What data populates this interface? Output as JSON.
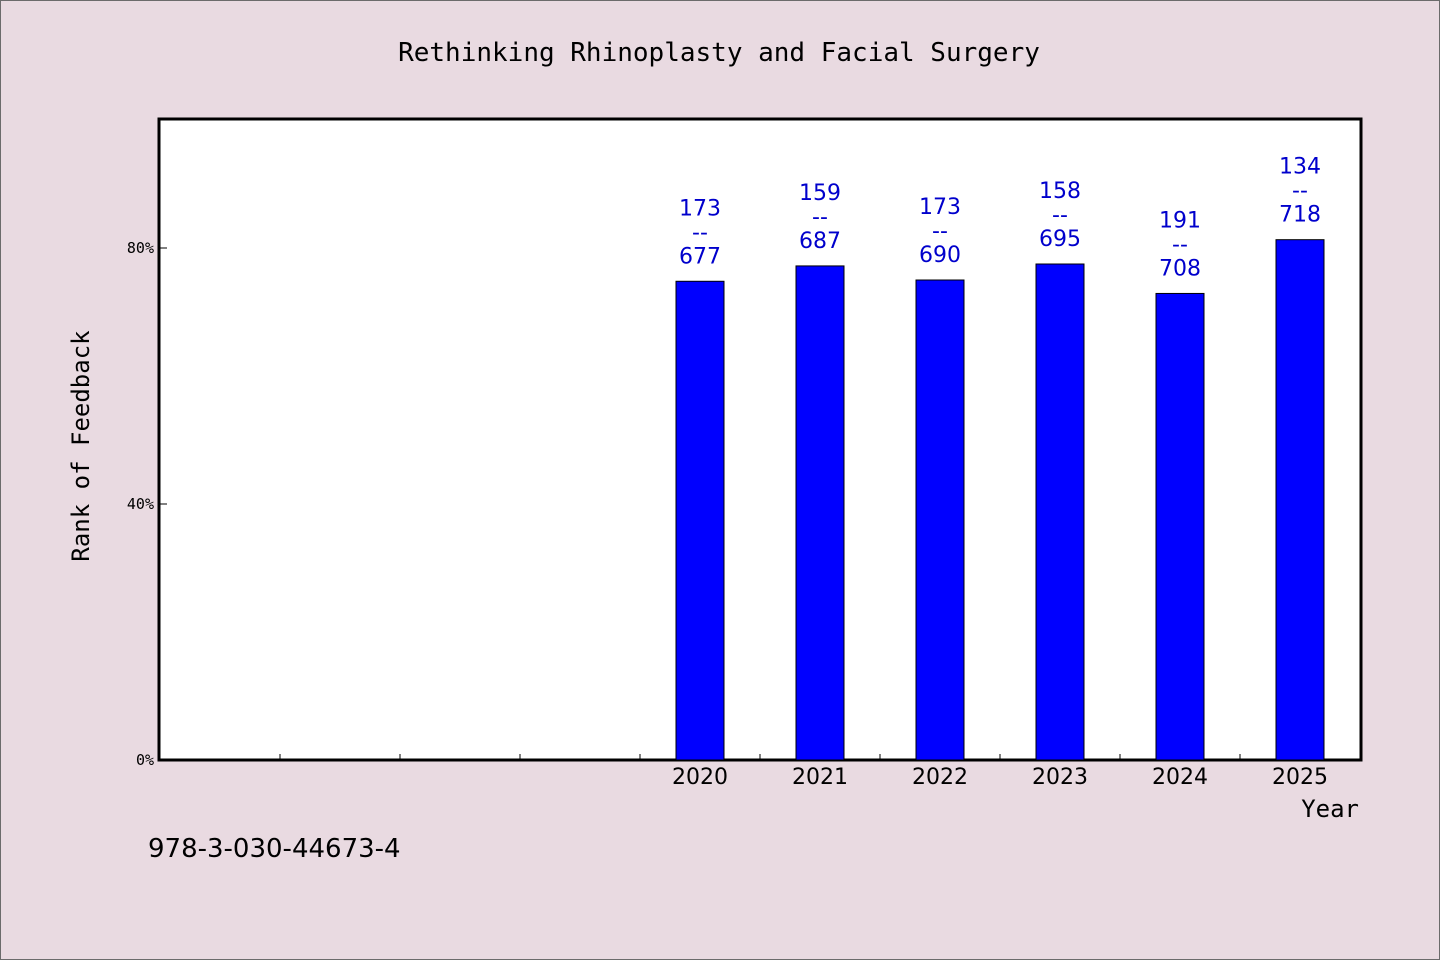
{
  "colors": {
    "background": "#e9dae1",
    "bar": "#0000ff",
    "bar_label": "#0000cc",
    "plot_bg": "#ffffff"
  },
  "footer": {
    "isbn": "978-3-030-44673-4"
  },
  "chart_data": {
    "type": "bar",
    "title": "Rethinking Rhinoplasty and Facial Surgery",
    "xlabel": "Year",
    "ylabel": "Rank of Feedback",
    "categories": [
      "",
      "",
      "",
      "",
      "2020",
      "2021",
      "2022",
      "2023",
      "2024",
      "2025"
    ],
    "series": [
      {
        "values": [
          null,
          null,
          null,
          null,
          74.8,
          77.2,
          75.0,
          77.5,
          72.9,
          81.3
        ],
        "labels": [
          null,
          null,
          null,
          null,
          [
            "173",
            "--",
            "677"
          ],
          [
            "159",
            "--",
            "687"
          ],
          [
            "173",
            "--",
            "690"
          ],
          [
            "158",
            "--",
            "695"
          ],
          [
            "191",
            "--",
            "708"
          ],
          [
            "134",
            "--",
            "718"
          ]
        ]
      }
    ],
    "yticks": [
      "0%",
      "40%",
      "80%"
    ],
    "ytick_values": [
      0,
      40,
      80
    ],
    "ylim": [
      0,
      100
    ],
    "grid": false,
    "legend": "none"
  }
}
